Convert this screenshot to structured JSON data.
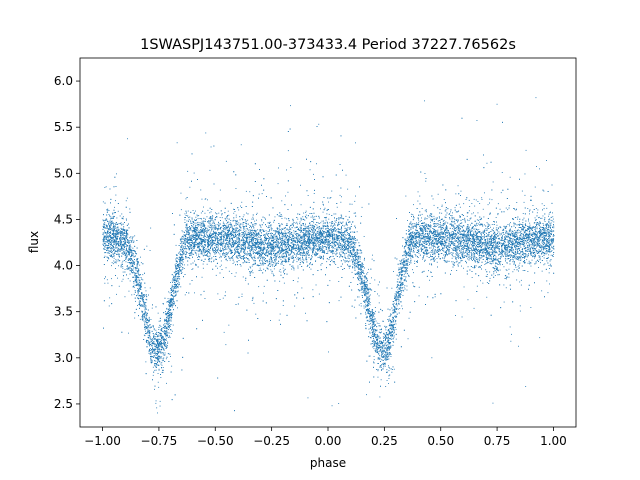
{
  "chart_data": {
    "type": "scatter",
    "title": "1SWASPJ143751.00-373433.4 Period 37227.76562s",
    "xlabel": "phase",
    "ylabel": "flux",
    "xlim": [
      -1.1,
      1.1
    ],
    "ylim": [
      2.25,
      6.25
    ],
    "xticks": [
      -1.0,
      -0.75,
      -0.5,
      -0.25,
      0.0,
      0.25,
      0.5,
      0.75,
      1.0
    ],
    "xtick_labels": [
      "−1.00",
      "−0.75",
      "−0.50",
      "−0.25",
      "0.00",
      "0.25",
      "0.50",
      "0.75",
      "1.00"
    ],
    "yticks": [
      2.5,
      3.0,
      3.5,
      4.0,
      4.5,
      5.0,
      5.5,
      6.0
    ],
    "ytick_labels": [
      "2.5",
      "3.0",
      "3.5",
      "4.0",
      "4.5",
      "5.0",
      "5.5",
      "6.0"
    ],
    "grid": false,
    "marker_color": "#1f77b4",
    "series": [
      {
        "x": [
          -1.0,
          -0.95,
          -0.9,
          -0.87,
          -0.84,
          -0.82,
          -0.8,
          -0.78,
          -0.76,
          -0.74,
          -0.72,
          -0.7,
          -0.68,
          -0.66,
          -0.64,
          -0.62,
          -0.6,
          -0.55,
          -0.5,
          -0.45,
          -0.4,
          -0.35,
          -0.3,
          -0.25,
          -0.2,
          -0.15,
          -0.1,
          -0.05,
          0.0,
          0.05,
          0.1,
          0.13,
          0.16,
          0.18,
          0.2,
          0.22,
          0.24,
          0.26,
          0.28,
          0.3,
          0.32,
          0.34,
          0.36,
          0.38,
          0.4,
          0.45,
          0.5,
          0.55,
          0.6,
          0.65,
          0.7,
          0.75,
          0.8,
          0.85,
          0.9,
          0.95,
          1.0
        ],
        "y": [
          4.3,
          4.3,
          4.25,
          4.05,
          3.8,
          3.55,
          3.3,
          3.12,
          3.08,
          3.12,
          3.3,
          3.55,
          3.8,
          4.05,
          4.25,
          4.3,
          4.32,
          4.3,
          4.3,
          4.3,
          4.28,
          4.25,
          4.22,
          4.2,
          4.22,
          4.25,
          4.28,
          4.3,
          4.3,
          4.3,
          4.25,
          4.05,
          3.8,
          3.55,
          3.3,
          3.12,
          3.08,
          3.12,
          3.3,
          3.55,
          3.8,
          4.05,
          4.25,
          4.3,
          4.32,
          4.3,
          4.3,
          4.3,
          4.28,
          4.25,
          4.22,
          4.2,
          4.22,
          4.25,
          4.28,
          4.3,
          4.3
        ]
      }
    ]
  }
}
